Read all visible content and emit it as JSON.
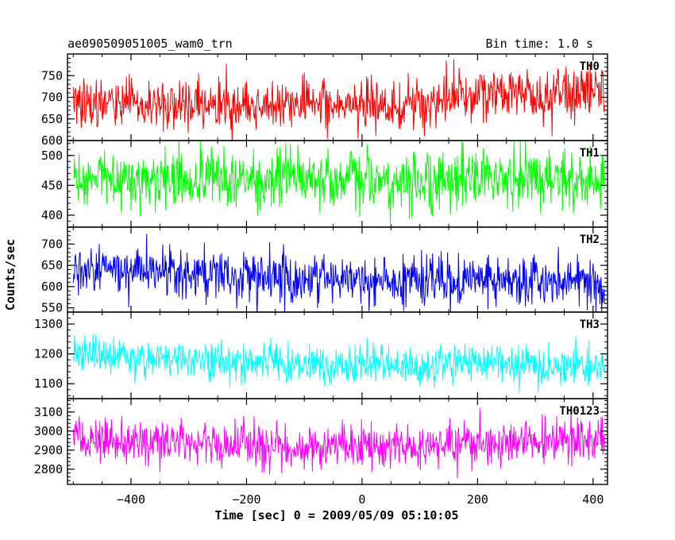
{
  "chart_data": {
    "type": "line",
    "title": "ae090509051005_wam0_trn",
    "subtitle": "Bin time: 1.0 s",
    "xlabel": "Time [sec] 0 = 2009/05/09 05:10:05",
    "ylabel": "Counts/sec",
    "xlim": [
      -510,
      425
    ],
    "x_range": [
      -500,
      420
    ],
    "x_ticks": [
      -400,
      -200,
      0,
      200,
      400
    ],
    "x_tick_labels": [
      "−400",
      "−200",
      "0",
      "200",
      "400"
    ],
    "grid": false,
    "panels": [
      {
        "name": "TH0",
        "color": "#ff0000",
        "ylim": [
          600,
          800
        ],
        "y_ticks": [
          600,
          650,
          700,
          750
        ],
        "y_tick_labels": [
          "600",
          "650",
          "700",
          "750"
        ],
        "trend": [
          [
            -500,
            688
          ],
          [
            -300,
            683
          ],
          [
            -100,
            685
          ],
          [
            0,
            680
          ],
          [
            150,
            690
          ],
          [
            200,
            705
          ],
          [
            420,
            712
          ]
        ],
        "noise_sigma": 29
      },
      {
        "name": "TH1",
        "color": "#00ff00",
        "ylim": [
          380,
          525
        ],
        "y_ticks": [
          400,
          450,
          500
        ],
        "y_tick_labels": [
          "400",
          "450",
          "500"
        ],
        "trend": [
          [
            -500,
            462
          ],
          [
            -200,
            460
          ],
          [
            0,
            458
          ],
          [
            200,
            462
          ],
          [
            420,
            460
          ]
        ],
        "noise_sigma": 24
      },
      {
        "name": "TH2",
        "color": "#0000ff",
        "ylim": [
          540,
          740
        ],
        "y_ticks": [
          550,
          600,
          650,
          700
        ],
        "y_tick_labels": [
          "550",
          "600",
          "650",
          "700"
        ],
        "trend": [
          [
            -500,
            648
          ],
          [
            -300,
            632
          ],
          [
            -100,
            618
          ],
          [
            100,
            614
          ],
          [
            420,
            610
          ]
        ],
        "noise_sigma": 30
      },
      {
        "name": "TH3",
        "color": "#00ffff",
        "ylim": [
          1050,
          1340
        ],
        "y_ticks": [
          1100,
          1200,
          1300
        ],
        "y_tick_labels": [
          "1100",
          "1200",
          "1300"
        ],
        "trend": [
          [
            -500,
            1205
          ],
          [
            -300,
            1175
          ],
          [
            -100,
            1165
          ],
          [
            200,
            1162
          ],
          [
            420,
            1160
          ]
        ],
        "noise_sigma": 32
      },
      {
        "name": "TH0123",
        "color": "#ff00ff",
        "ylim": [
          2720,
          3170
        ],
        "y_ticks": [
          2800,
          2900,
          3000,
          3100
        ],
        "y_tick_labels": [
          "2800",
          "2900",
          "3000",
          "3100"
        ],
        "trend": [
          [
            -500,
            2965
          ],
          [
            -300,
            2935
          ],
          [
            -100,
            2915
          ],
          [
            0,
            2915
          ],
          [
            200,
            2935
          ],
          [
            420,
            2955
          ]
        ],
        "noise_sigma": 58
      }
    ]
  }
}
